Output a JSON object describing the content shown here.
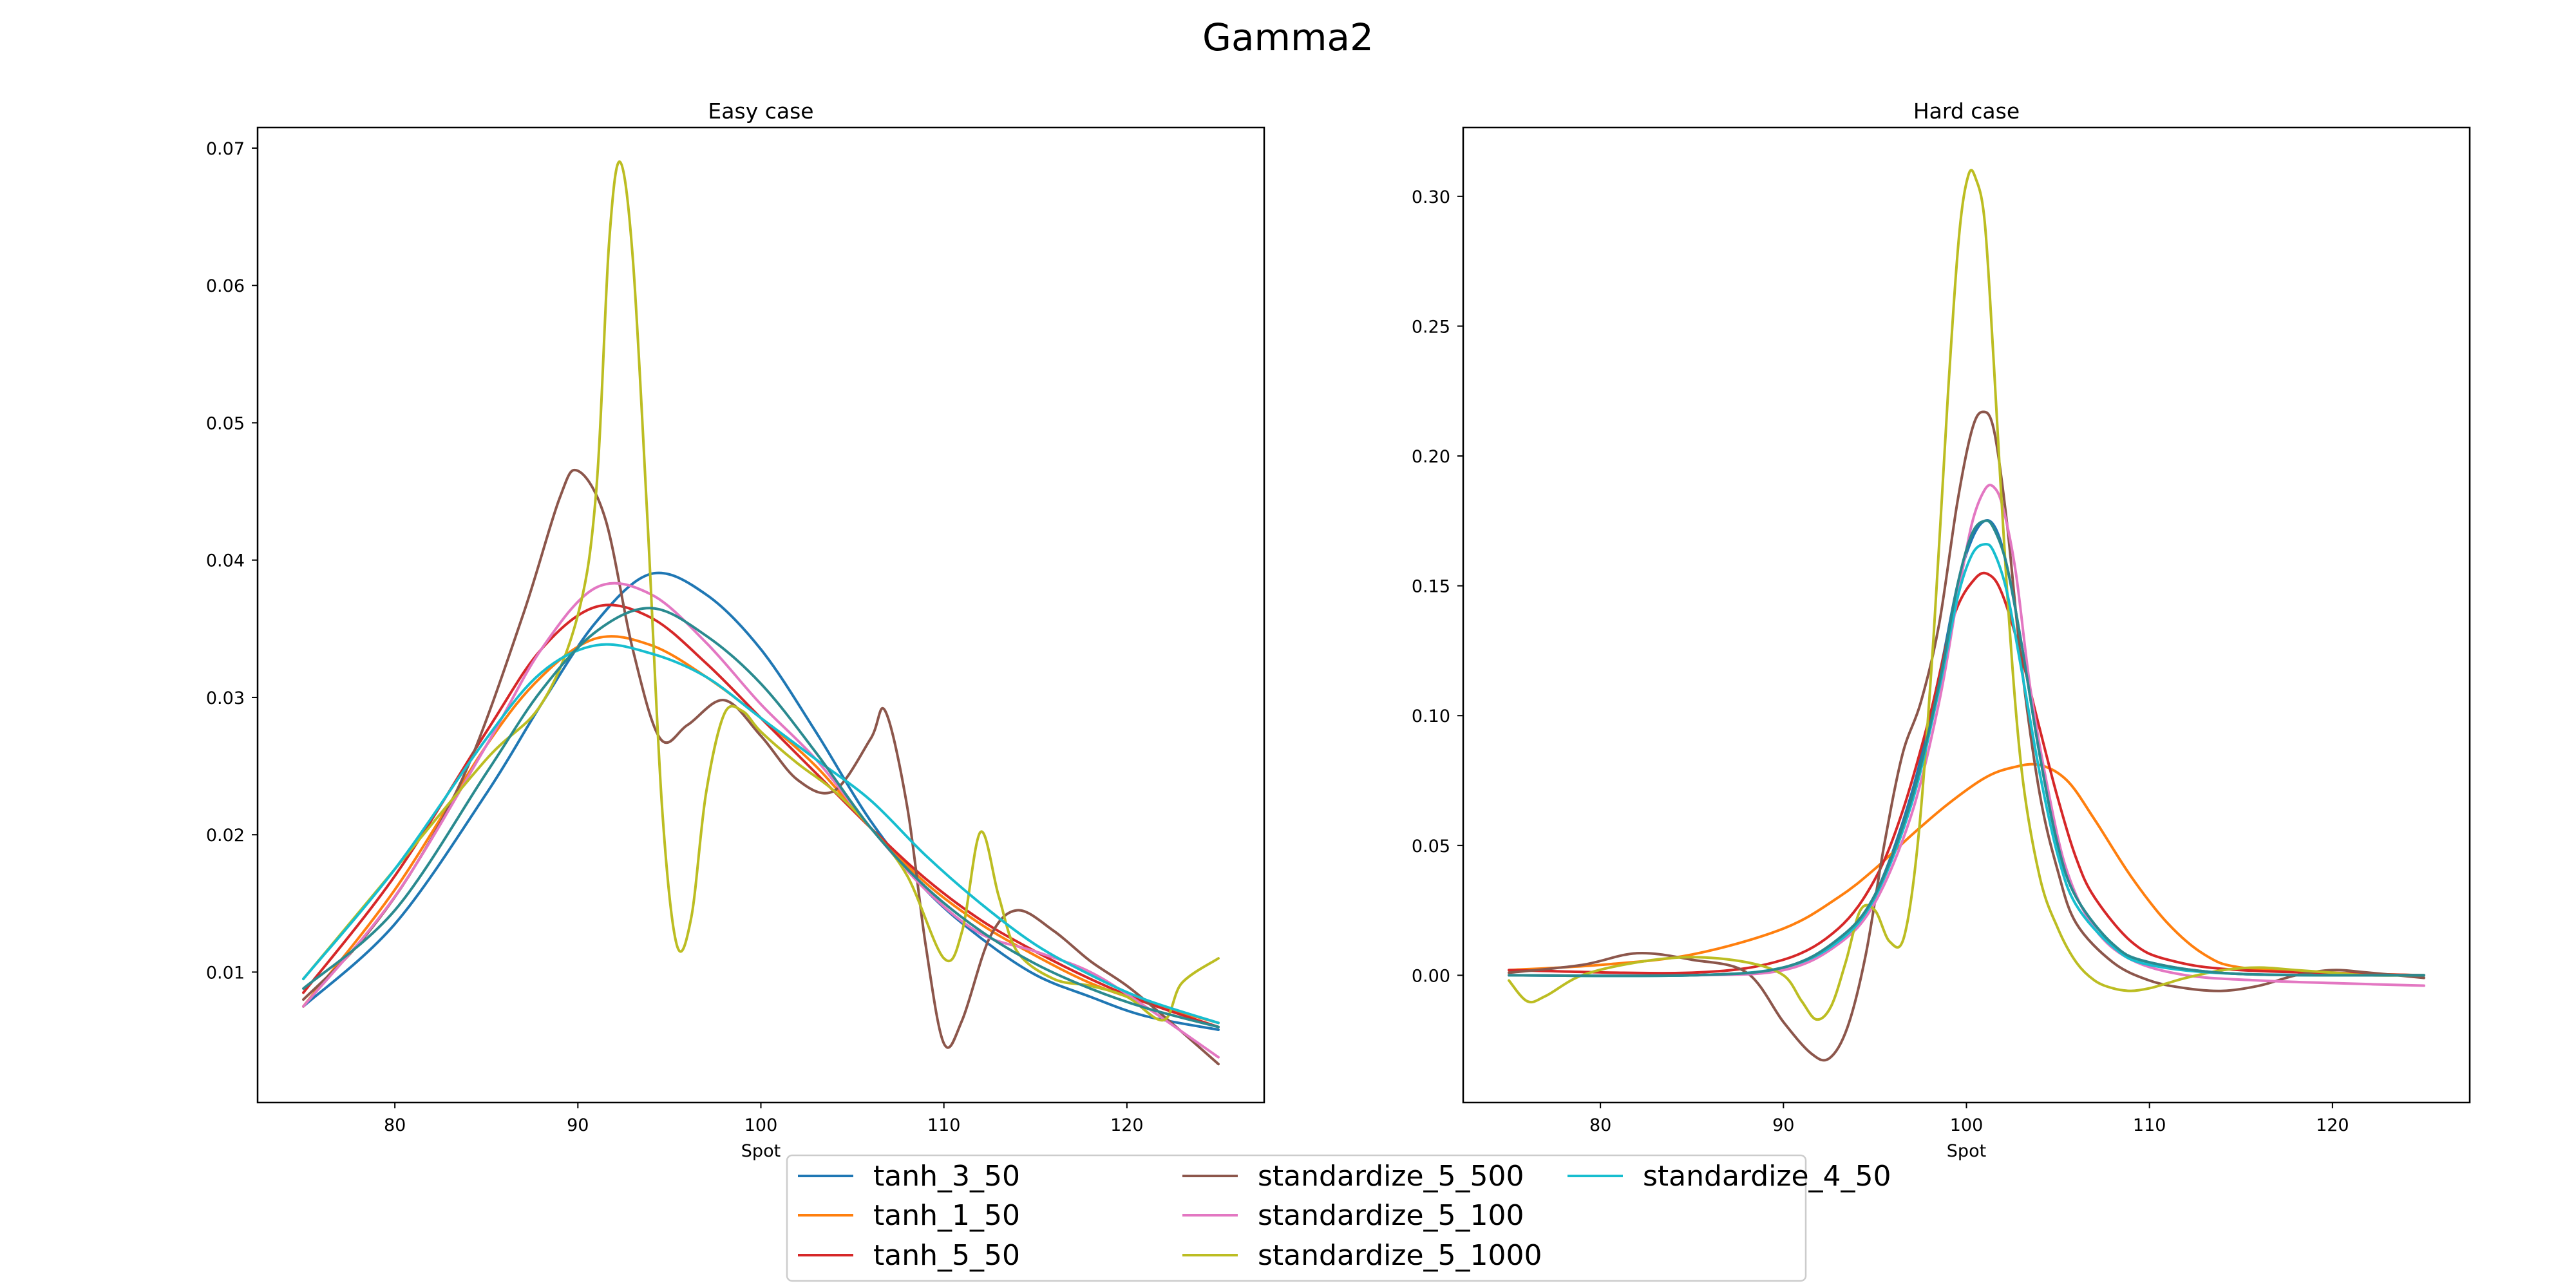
{
  "figure": {
    "title": "Gamma2"
  },
  "colors": {
    "tanh_3_50": "#1f77b4",
    "tanh_1_50": "#ff7f0e",
    "tanh_5_50": "#d62728",
    "standardize_5_500": "#8c564b",
    "standardize_5_100": "#e377c2",
    "standardize_5_1000": "#bcbd22",
    "standardize_4_50": "#17becf",
    "unlabeled": "#2a8a8f"
  },
  "legend": {
    "placement": "bottom-center",
    "entries": [
      "tanh_3_50",
      "tanh_1_50",
      "tanh_5_50",
      "standardize_5_500",
      "standardize_5_100",
      "standardize_5_1000",
      "standardize_4_50"
    ]
  },
  "chart_data": [
    {
      "type": "line",
      "title": "Easy case",
      "xlabel": "Spot",
      "ylabel": "",
      "xlim": [
        72.5,
        127.5
      ],
      "ylim": [
        0.0005,
        0.0715
      ],
      "xticks": [
        80,
        90,
        100,
        110,
        120
      ],
      "xtick_labels": [
        "80",
        "90",
        "100",
        "110",
        "120"
      ],
      "yticks": [
        0.01,
        0.02,
        0.03,
        0.04,
        0.05,
        0.06,
        0.07
      ],
      "ytick_labels": [
        "0.01",
        "0.02",
        "0.03",
        "0.04",
        "0.05",
        "0.06",
        "0.07"
      ],
      "grid": false,
      "series": [
        {
          "name": "tanh_3_50",
          "x": [
            75,
            80,
            85,
            88,
            91,
            94,
            97,
            100,
            103,
            106,
            109,
            112,
            115,
            118,
            121,
            125
          ],
          "y": [
            0.0075,
            0.0135,
            0.023,
            0.0295,
            0.0355,
            0.039,
            0.0375,
            0.0335,
            0.0275,
            0.021,
            0.016,
            0.0125,
            0.0098,
            0.0082,
            0.0068,
            0.0058
          ]
        },
        {
          "name": "tanh_1_50",
          "x": [
            75,
            80,
            85,
            88,
            91,
            94,
            97,
            100,
            103,
            106,
            109,
            112,
            115,
            118,
            121,
            125
          ],
          "y": [
            0.0075,
            0.016,
            0.0265,
            0.0315,
            0.0343,
            0.0338,
            0.0315,
            0.0285,
            0.025,
            0.0205,
            0.0165,
            0.0135,
            0.0112,
            0.0092,
            0.0078,
            0.0063
          ]
        },
        {
          "name": "tanh_5_50",
          "x": [
            75,
            80,
            85,
            88,
            91,
            94,
            97,
            100,
            103,
            106,
            109,
            112,
            115,
            118,
            121,
            125
          ],
          "y": [
            0.0085,
            0.017,
            0.0275,
            0.0335,
            0.0366,
            0.0358,
            0.0325,
            0.0285,
            0.0245,
            0.0205,
            0.0168,
            0.0138,
            0.0115,
            0.0095,
            0.0078,
            0.006
          ]
        },
        {
          "name": "standardize_5_500",
          "x": [
            75,
            78,
            81,
            84,
            87,
            89,
            90,
            91.5,
            93,
            94.5,
            96,
            98,
            100,
            102,
            104,
            106,
            106.8,
            108,
            109,
            110,
            111,
            112.5,
            114,
            116,
            118,
            120,
            122,
            125
          ],
          "y": [
            0.008,
            0.012,
            0.0175,
            0.025,
            0.036,
            0.0445,
            0.0465,
            0.043,
            0.0335,
            0.027,
            0.028,
            0.0298,
            0.0272,
            0.024,
            0.0232,
            0.027,
            0.029,
            0.022,
            0.012,
            0.0048,
            0.0065,
            0.0125,
            0.0145,
            0.013,
            0.0108,
            0.009,
            0.0068,
            0.0033
          ]
        },
        {
          "name": "standardize_5_100",
          "x": [
            75,
            80,
            85,
            88,
            91,
            94,
            97,
            100,
            103,
            106,
            109,
            112,
            115,
            118,
            121,
            125
          ],
          "y": [
            0.0075,
            0.0155,
            0.0265,
            0.0335,
            0.038,
            0.0375,
            0.034,
            0.0295,
            0.0255,
            0.0205,
            0.016,
            0.0128,
            0.0115,
            0.01,
            0.0075,
            0.0038
          ]
        },
        {
          "name": "standardize_5_1000",
          "x": [
            75,
            80,
            85,
            88,
            90,
            91,
            91.7,
            92.3,
            93,
            93.8,
            94.6,
            95.4,
            96.2,
            97,
            98,
            99,
            100,
            102,
            104,
            106,
            108,
            110,
            111,
            112,
            113,
            114,
            116,
            118,
            120,
            122,
            123,
            125
          ],
          "y": [
            0.0095,
            0.0175,
            0.0255,
            0.0295,
            0.036,
            0.045,
            0.063,
            0.069,
            0.062,
            0.043,
            0.022,
            0.012,
            0.014,
            0.023,
            0.0288,
            0.029,
            0.0275,
            0.0252,
            0.0232,
            0.0205,
            0.017,
            0.011,
            0.013,
            0.0202,
            0.0155,
            0.0115,
            0.0095,
            0.009,
            0.0082,
            0.0065,
            0.0092,
            0.011
          ]
        },
        {
          "name": "standardize_4_50",
          "x": [
            75,
            80,
            85,
            88,
            91,
            94,
            97,
            100,
            103,
            106,
            109,
            112,
            115,
            118,
            121,
            125
          ],
          "y": [
            0.0095,
            0.0175,
            0.027,
            0.0318,
            0.0338,
            0.0332,
            0.0315,
            0.0285,
            0.0255,
            0.0225,
            0.0185,
            0.015,
            0.012,
            0.0098,
            0.008,
            0.0063
          ]
        },
        {
          "x": [
            75,
            80,
            85,
            88,
            91,
            94,
            97,
            100,
            103,
            106,
            109,
            112,
            115,
            118,
            121,
            125
          ],
          "y": [
            0.0088,
            0.0145,
            0.0245,
            0.0305,
            0.0348,
            0.0365,
            0.0345,
            0.031,
            0.026,
            0.0205,
            0.0162,
            0.013,
            0.0106,
            0.0088,
            0.0074,
            0.006
          ]
        }
      ]
    },
    {
      "type": "line",
      "title": "Hard case",
      "xlabel": "Spot",
      "ylabel": "",
      "xlim": [
        72.5,
        127.5
      ],
      "ylim": [
        -0.049,
        0.3265
      ],
      "xticks": [
        80,
        90,
        100,
        110,
        120
      ],
      "xtick_labels": [
        "80",
        "90",
        "100",
        "110",
        "120"
      ],
      "yticks": [
        0.0,
        0.05,
        0.1,
        0.15,
        0.2,
        0.25,
        0.3
      ],
      "ytick_labels": [
        "0.00",
        "0.05",
        "0.10",
        "0.15",
        "0.20",
        "0.25",
        "0.30"
      ],
      "grid": false,
      "series": [
        {
          "name": "tanh_3_50",
          "x": [
            75,
            85,
            90,
            93,
            95,
            97,
            98.5,
            99.5,
            100.3,
            101,
            101.6,
            102.2,
            103,
            104,
            105,
            106,
            108,
            110,
            115,
            125
          ],
          "y": [
            0.0,
            0.0,
            0.003,
            0.014,
            0.031,
            0.07,
            0.115,
            0.15,
            0.168,
            0.175,
            0.172,
            0.158,
            0.128,
            0.085,
            0.05,
            0.03,
            0.012,
            0.005,
            0.0005,
            0.0
          ]
        },
        {
          "name": "tanh_1_50",
          "x": [
            75,
            80,
            85,
            90,
            93,
            95,
            97,
            99,
            101,
            102.5,
            104,
            105.5,
            107,
            109,
            111,
            113,
            115,
            120,
            125
          ],
          "y": [
            0.002,
            0.004,
            0.008,
            0.018,
            0.03,
            0.041,
            0.054,
            0.066,
            0.076,
            0.08,
            0.081,
            0.075,
            0.06,
            0.038,
            0.02,
            0.008,
            0.003,
            0.001,
            0.0
          ]
        },
        {
          "name": "tanh_5_50",
          "x": [
            75,
            85,
            90,
            93,
            95,
            96.5,
            98,
            99.3,
            100.5,
            101.3,
            102,
            103,
            104,
            105,
            106,
            107,
            109,
            111,
            115,
            125
          ],
          "y": [
            0.002,
            0.001,
            0.006,
            0.018,
            0.037,
            0.063,
            0.1,
            0.138,
            0.153,
            0.154,
            0.146,
            0.123,
            0.095,
            0.068,
            0.045,
            0.03,
            0.013,
            0.006,
            0.002,
            0.0
          ]
        },
        {
          "name": "standardize_5_500",
          "x": [
            75,
            79,
            82,
            85,
            88,
            90,
            91.5,
            92.5,
            93.5,
            94.5,
            95.5,
            96.5,
            97.5,
            98.5,
            99.5,
            100.3,
            100.9,
            101.5,
            102.2,
            103,
            104,
            105,
            106,
            108,
            110,
            112,
            114,
            116,
            118,
            120,
            122,
            125
          ],
          "y": [
            0.001,
            0.004,
            0.0085,
            0.006,
            0.001,
            -0.018,
            -0.03,
            -0.032,
            -0.02,
            0.008,
            0.05,
            0.085,
            0.105,
            0.135,
            0.182,
            0.21,
            0.217,
            0.21,
            0.175,
            0.12,
            0.07,
            0.04,
            0.02,
            0.005,
            -0.002,
            -0.005,
            -0.006,
            -0.004,
            0.0,
            0.002,
            0.001,
            -0.001
          ]
        },
        {
          "name": "standardize_5_100",
          "x": [
            75,
            85,
            90,
            93,
            95,
            97,
            98.5,
            99.5,
            100.3,
            101,
            101.5,
            102,
            102.7,
            103.5,
            104.5,
            105.5,
            107,
            109,
            112,
            116,
            120,
            125
          ],
          "y": [
            0.0,
            0.0,
            0.002,
            0.012,
            0.028,
            0.062,
            0.105,
            0.145,
            0.174,
            0.187,
            0.188,
            0.18,
            0.155,
            0.11,
            0.07,
            0.04,
            0.018,
            0.006,
            0.0,
            -0.002,
            -0.003,
            -0.004
          ]
        },
        {
          "name": "standardize_5_1000",
          "x": [
            75,
            76,
            77,
            79,
            82,
            85,
            88,
            90,
            91,
            91.8,
            92.6,
            93.4,
            94.2,
            95,
            95.8,
            96.6,
            97.4,
            98.2,
            99,
            99.6,
            100.1,
            100.5,
            101,
            101.5,
            102.2,
            103,
            104,
            105,
            106,
            107,
            108,
            109,
            110,
            111,
            112,
            114,
            116,
            118,
            120,
            122,
            125
          ],
          "y": [
            -0.002,
            -0.01,
            -0.008,
            0.0,
            0.005,
            0.007,
            0.005,
            0.0,
            -0.01,
            -0.017,
            -0.012,
            0.005,
            0.025,
            0.025,
            0.013,
            0.015,
            0.055,
            0.13,
            0.225,
            0.285,
            0.308,
            0.307,
            0.29,
            0.235,
            0.15,
            0.08,
            0.038,
            0.018,
            0.005,
            -0.002,
            -0.005,
            -0.006,
            -0.005,
            -0.003,
            -0.001,
            0.002,
            0.003,
            0.002,
            0.001,
            0.0,
            0.0
          ]
        },
        {
          "name": "standardize_4_50",
          "x": [
            75,
            85,
            90,
            93,
            95,
            97,
            98.5,
            99.5,
            100.3,
            101,
            101.5,
            102.2,
            103,
            104,
            105,
            106,
            108,
            110,
            115,
            125
          ],
          "y": [
            0.0,
            0.0,
            0.003,
            0.013,
            0.03,
            0.066,
            0.11,
            0.145,
            0.162,
            0.166,
            0.163,
            0.148,
            0.118,
            0.078,
            0.046,
            0.027,
            0.011,
            0.004,
            0.0005,
            0.0
          ]
        },
        {
          "x": [
            75,
            85,
            90,
            93,
            95,
            97,
            98.5,
            99.5,
            100.3,
            101,
            101.5,
            102.2,
            103,
            104,
            105,
            106,
            108,
            110,
            115,
            125
          ],
          "y": [
            0.0,
            0.0,
            0.003,
            0.014,
            0.031,
            0.068,
            0.112,
            0.15,
            0.17,
            0.175,
            0.172,
            0.158,
            0.128,
            0.085,
            0.05,
            0.03,
            0.012,
            0.005,
            0.0005,
            0.0
          ]
        }
      ]
    }
  ]
}
